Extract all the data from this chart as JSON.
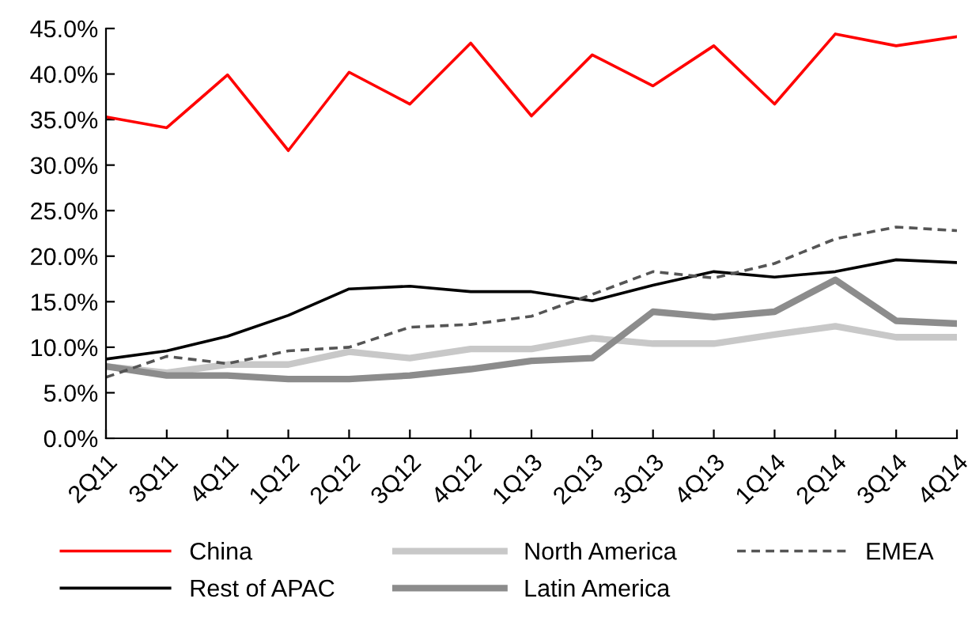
{
  "chart_data": {
    "type": "line",
    "categories": [
      "2Q11",
      "3Q11",
      "4Q11",
      "1Q12",
      "2Q12",
      "3Q12",
      "4Q12",
      "1Q13",
      "2Q13",
      "3Q13",
      "4Q13",
      "1Q14",
      "2Q14",
      "3Q14",
      "4Q14"
    ],
    "ylim": [
      0,
      45
    ],
    "yticks": [
      {
        "value": 0,
        "label": "0.0%"
      },
      {
        "value": 5,
        "label": "5.0%"
      },
      {
        "value": 10,
        "label": "10.0%"
      },
      {
        "value": 15,
        "label": "15.0%"
      },
      {
        "value": 20,
        "label": "20.0%"
      },
      {
        "value": 25,
        "label": "25.0%"
      },
      {
        "value": 30,
        "label": "30.0%"
      },
      {
        "value": 35,
        "label": "35.0%"
      },
      {
        "value": 40,
        "label": "40.0%"
      },
      {
        "value": 45,
        "label": "45.0%"
      }
    ],
    "grid": false,
    "legend": "bottom",
    "marker": "none",
    "series": [
      {
        "name": "China",
        "color": "#ff0000",
        "values": [
          35.3,
          34.1,
          39.9,
          31.6,
          40.2,
          36.7,
          43.4,
          35.4,
          42.1,
          38.7,
          43.1,
          36.7,
          44.4,
          43.1,
          44.1
        ]
      },
      {
        "name": "Rest of APAC",
        "color": "#000000",
        "values": [
          8.7,
          9.6,
          11.2,
          13.5,
          16.4,
          16.7,
          16.1,
          16.1,
          15.1,
          16.8,
          18.3,
          17.7,
          18.3,
          19.6,
          19.3
        ]
      },
      {
        "name": "North America",
        "color": "#c8c8c8",
        "values": [
          7.9,
          7.2,
          8.1,
          8.1,
          9.5,
          8.8,
          9.8,
          9.8,
          11.0,
          10.4,
          10.4,
          11.4,
          12.3,
          11.1,
          11.1
        ]
      },
      {
        "name": "Latin America",
        "color": "#8c8c8c",
        "values": [
          7.9,
          6.9,
          6.9,
          6.5,
          6.5,
          6.9,
          7.6,
          8.5,
          8.8,
          13.9,
          13.3,
          13.9,
          17.4,
          12.9,
          12.6
        ]
      },
      {
        "name": "EMEA",
        "color": "#555555",
        "line_style": "dashed",
        "values": [
          6.7,
          9.0,
          8.2,
          9.6,
          10.0,
          12.2,
          12.5,
          13.4,
          15.8,
          18.3,
          17.6,
          19.2,
          21.9,
          23.2,
          22.8
        ]
      }
    ]
  }
}
